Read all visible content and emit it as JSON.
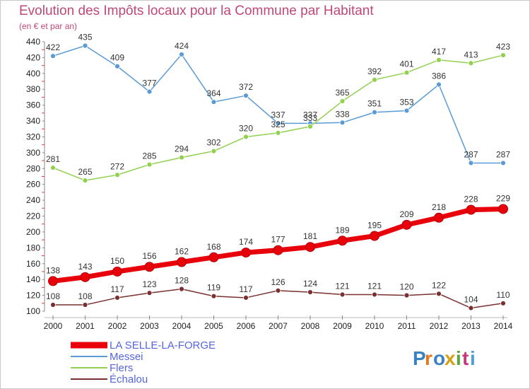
{
  "header": {
    "title": "Evolution des Impôts locaux pour la Commune par Habitant",
    "subtitle": "(en € et par an)"
  },
  "logo": {
    "text": "Proxiti"
  },
  "chart_data": {
    "type": "line",
    "title": "Evolution des Impôts locaux pour la Commune par Habitant",
    "subtitle": "(en € et par an)",
    "xlabel": "",
    "ylabel": "",
    "x": [
      "2000",
      "2001",
      "2002",
      "2003",
      "2004",
      "2005",
      "2006",
      "2007",
      "2008",
      "2009",
      "2010",
      "2011",
      "2012",
      "2013",
      "2014"
    ],
    "ylim": [
      100,
      440
    ],
    "yticks": [
      100,
      120,
      140,
      160,
      180,
      200,
      220,
      240,
      260,
      280,
      300,
      320,
      340,
      360,
      380,
      400,
      420,
      440
    ],
    "grid": false,
    "legend_position": "bottom-left",
    "series": [
      {
        "name": "LA SELLE-LA-FORGE",
        "color": "#e8000b",
        "values": [
          138,
          143,
          150,
          156,
          162,
          168,
          174,
          177,
          181,
          189,
          195,
          209,
          218,
          228,
          229
        ]
      },
      {
        "name": "Messei",
        "color": "#5b9bd5",
        "values": [
          422,
          435,
          409,
          377,
          424,
          364,
          372,
          337,
          337,
          338,
          351,
          353,
          386,
          287,
          287
        ]
      },
      {
        "name": "Flers",
        "color": "#92d050",
        "values": [
          281,
          265,
          272,
          285,
          294,
          302,
          320,
          325,
          333,
          365,
          392,
          401,
          417,
          413,
          423
        ]
      },
      {
        "name": "Échalou",
        "color": "#7a3030",
        "values": [
          108,
          108,
          117,
          123,
          128,
          119,
          117,
          126,
          124,
          121,
          121,
          120,
          122,
          104,
          110
        ]
      }
    ]
  }
}
